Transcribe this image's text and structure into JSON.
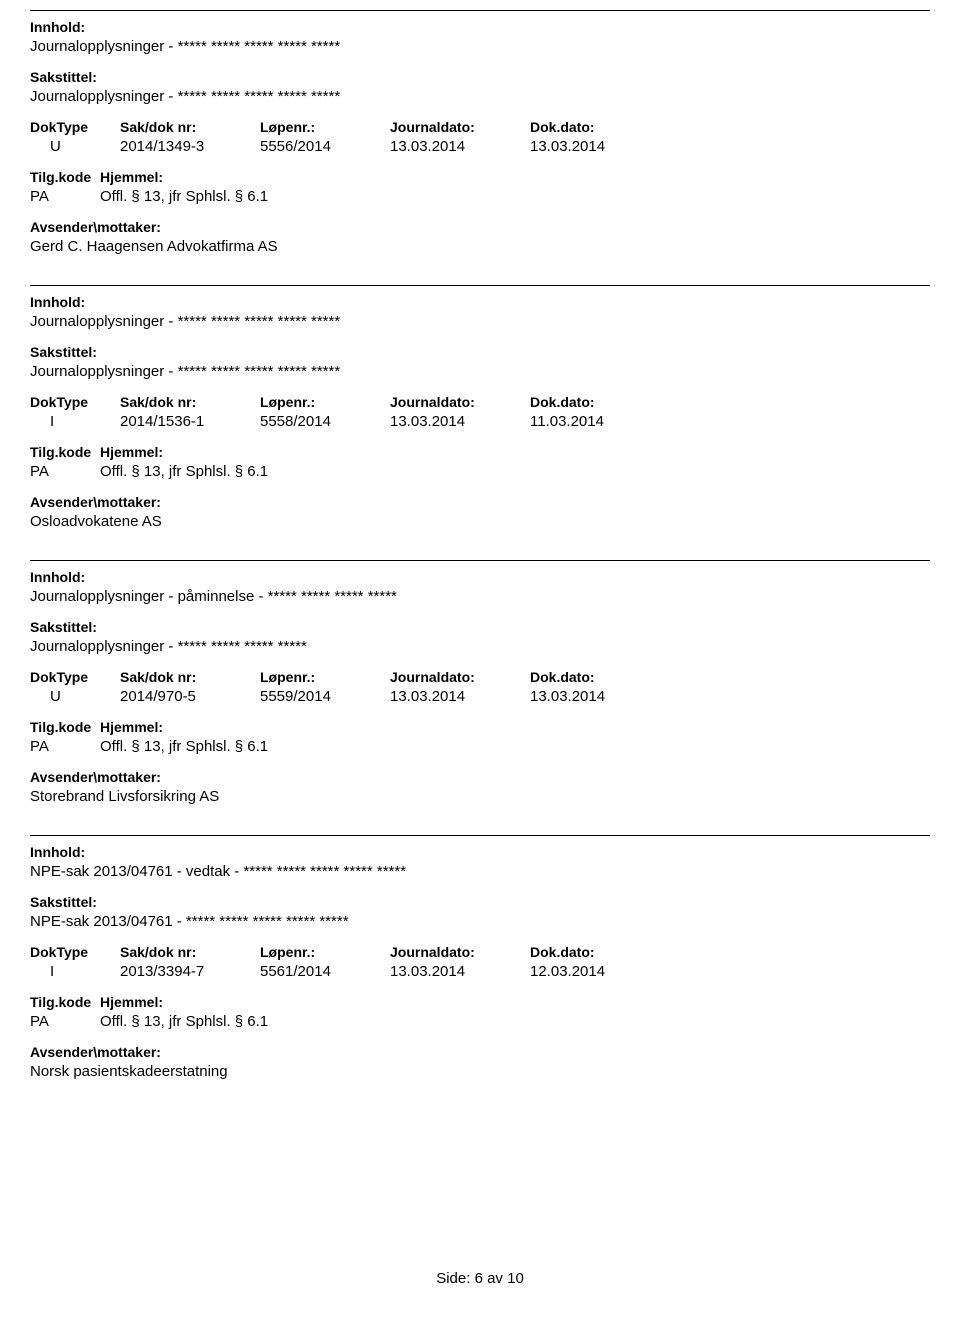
{
  "labels": {
    "innhold": "Innhold:",
    "sakstittel": "Sakstittel:",
    "doktype": "DokType",
    "sakdok": "Sak/dok nr:",
    "lopenr": "Løpenr.:",
    "journaldato": "Journaldato:",
    "dokdato": "Dok.dato:",
    "tilgkode": "Tilg.kode",
    "hjemmel": "Hjemmel:",
    "avsender": "Avsender\\mottaker:"
  },
  "entries": [
    {
      "innhold": "Journalopplysninger - ***** ***** ***** ***** *****",
      "sakstittel": "Journalopplysninger - ***** ***** ***** ***** *****",
      "doktype": "U",
      "sakdok": "2014/1349-3",
      "lopenr": "5556/2014",
      "journaldato": "13.03.2014",
      "dokdato": "13.03.2014",
      "tilgkode": "PA",
      "hjemmel": "Offl. § 13, jfr Sphlsl. § 6.1",
      "avsender": "Gerd C. Haagensen Advokatfirma AS"
    },
    {
      "innhold": "Journalopplysninger - ***** ***** ***** ***** *****",
      "sakstittel": "Journalopplysninger - ***** ***** ***** ***** *****",
      "doktype": "I",
      "sakdok": "2014/1536-1",
      "lopenr": "5558/2014",
      "journaldato": "13.03.2014",
      "dokdato": "11.03.2014",
      "tilgkode": "PA",
      "hjemmel": "Offl. § 13, jfr Sphlsl. § 6.1",
      "avsender": "Osloadvokatene AS"
    },
    {
      "innhold": "Journalopplysninger - påminnelse -  ***** ***** ***** *****",
      "sakstittel": "Journalopplysninger - ***** ***** ***** *****",
      "doktype": "U",
      "sakdok": "2014/970-5",
      "lopenr": "5559/2014",
      "journaldato": "13.03.2014",
      "dokdato": "13.03.2014",
      "tilgkode": "PA",
      "hjemmel": "Offl. § 13, jfr Sphlsl. § 6.1",
      "avsender": "Storebrand Livsforsikring AS"
    },
    {
      "innhold": "NPE-sak 2013/04761 - vedtak - ***** ***** ***** ***** *****",
      "sakstittel": "NPE-sak 2013/04761 - ***** ***** ***** ***** *****",
      "doktype": "I",
      "sakdok": "2013/3394-7",
      "lopenr": "5561/2014",
      "journaldato": "13.03.2014",
      "dokdato": "12.03.2014",
      "tilgkode": "PA",
      "hjemmel": "Offl. § 13, jfr Sphlsl. § 6.1",
      "avsender": "Norsk pasientskadeerstatning"
    }
  ],
  "footer": "Side: 6 av 10"
}
